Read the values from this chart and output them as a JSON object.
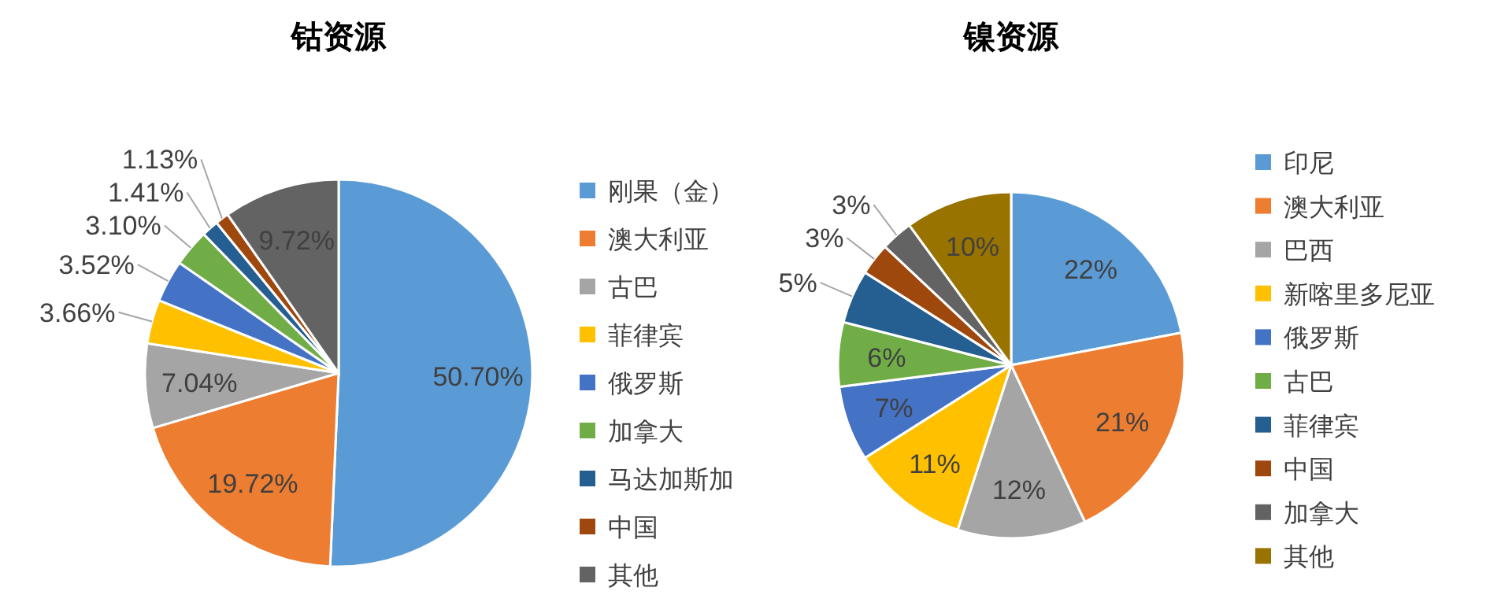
{
  "chart_data": [
    {
      "type": "pie",
      "title": "钴资源",
      "categories": [
        "刚果（金）",
        "澳大利亚",
        "古巴",
        "菲律宾",
        "俄罗斯",
        "加拿大",
        "马达加斯加",
        "中国",
        "其他"
      ],
      "values": [
        50.7,
        19.72,
        7.04,
        3.66,
        3.52,
        3.1,
        1.41,
        1.13,
        9.72
      ],
      "value_labels": [
        "50.70%",
        "19.72%",
        "7.04%",
        "3.66%",
        "3.52%",
        "3.10%",
        "1.41%",
        "1.13%",
        "9.72%"
      ],
      "colors": [
        "#5b9bd5",
        "#ed7d31",
        "#a5a5a5",
        "#ffc000",
        "#4472c4",
        "#70ad47",
        "#255e91",
        "#9e480e",
        "#636363"
      ],
      "legend": "right"
    },
    {
      "type": "pie",
      "title": "镍资源",
      "categories": [
        "印尼",
        "澳大利亚",
        "巴西",
        "新喀里多尼亚",
        "俄罗斯",
        "古巴",
        "菲律宾",
        "中国",
        "加拿大",
        "其他"
      ],
      "values": [
        22,
        21,
        12,
        11,
        7,
        6,
        5,
        3,
        3,
        10
      ],
      "value_labels": [
        "22%",
        "21%",
        "12%",
        "11%",
        "7%",
        "6%",
        "5%",
        "3%",
        "3%",
        "10%"
      ],
      "colors": [
        "#5b9bd5",
        "#ed7d31",
        "#a5a5a5",
        "#ffc000",
        "#4472c4",
        "#70ad47",
        "#255e91",
        "#9e480e",
        "#636363",
        "#997300"
      ],
      "legend": "right"
    }
  ]
}
